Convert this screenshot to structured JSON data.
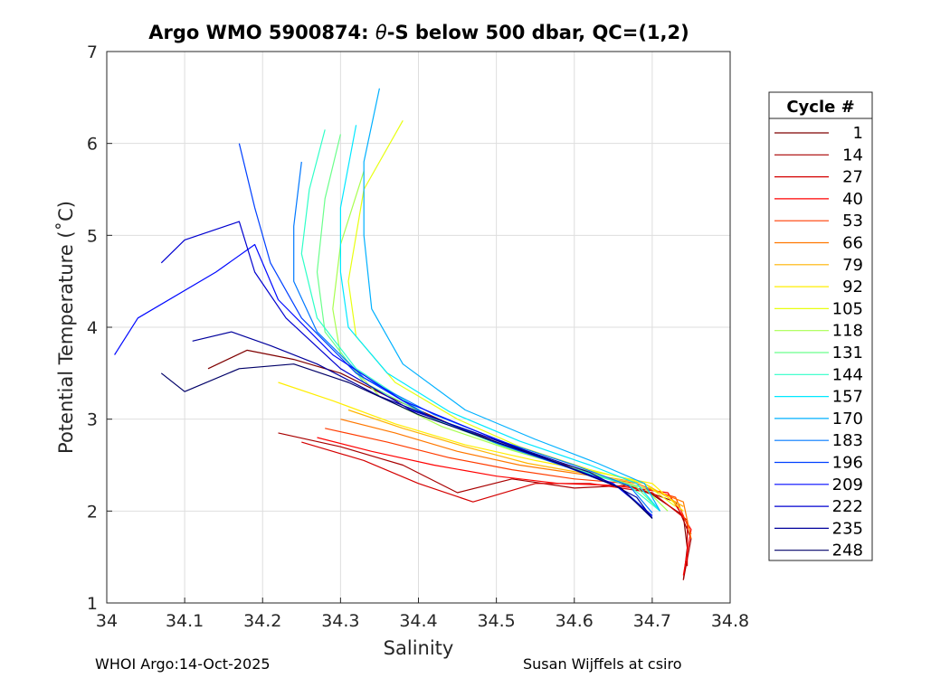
{
  "chart_data": {
    "type": "line",
    "title_prefix": "Argo WMO 5900874: ",
    "title_theta": "θ",
    "title_suffix": "-S below 500 dbar,  QC=(1,2)",
    "xlabel": "Salinity",
    "ylabel": "Potential Temperature (˚C)",
    "xlim": [
      34.0,
      34.8
    ],
    "ylim": [
      1,
      7
    ],
    "xticks": [
      "34",
      "34.1",
      "34.2",
      "34.3",
      "34.4",
      "34.5",
      "34.6",
      "34.7",
      "34.8"
    ],
    "yticks": [
      "1",
      "2",
      "3",
      "4",
      "5",
      "6",
      "7"
    ],
    "grid": true,
    "legend": {
      "title": "Cycle #",
      "placement": "right",
      "entries": [
        "1",
        "14",
        "27",
        "40",
        "53",
        "66",
        "79",
        "92",
        "105",
        "118",
        "131",
        "144",
        "157",
        "170",
        "183",
        "196",
        "209",
        "222",
        "235",
        "248"
      ],
      "colors": [
        "#7f0000",
        "#a80000",
        "#d40000",
        "#ff0000",
        "#ff3c00",
        "#ff7800",
        "#ffb400",
        "#ffee00",
        "#e8ff10",
        "#a8ff50",
        "#6bff8c",
        "#2fffc8",
        "#00e8ff",
        "#00b0ff",
        "#0078ff",
        "#0040ff",
        "#0008ff",
        "#0000d0",
        "#00009c",
        "#000068"
      ]
    },
    "series_shape": {
      "deep_end_point": [
        34.745,
        1.2
      ],
      "description_free": true
    },
    "series": [
      {
        "name": "1",
        "values": [
          [
            34.13,
            3.55
          ],
          [
            34.18,
            3.75
          ],
          [
            34.24,
            3.65
          ],
          [
            34.3,
            3.5
          ],
          [
            34.36,
            3.25
          ],
          [
            34.44,
            2.95
          ],
          [
            34.53,
            2.65
          ],
          [
            34.62,
            2.42
          ],
          [
            34.7,
            2.18
          ],
          [
            34.74,
            1.95
          ],
          [
            34.745,
            1.6
          ],
          [
            34.74,
            1.25
          ]
        ]
      },
      {
        "name": "14",
        "values": [
          [
            34.22,
            2.85
          ],
          [
            34.3,
            2.7
          ],
          [
            34.38,
            2.5
          ],
          [
            34.45,
            2.2
          ],
          [
            34.52,
            2.35
          ],
          [
            34.6,
            2.25
          ],
          [
            34.67,
            2.28
          ],
          [
            34.73,
            2.1
          ],
          [
            34.75,
            1.7
          ],
          [
            34.74,
            1.25
          ]
        ]
      },
      {
        "name": "27",
        "values": [
          [
            34.25,
            2.75
          ],
          [
            34.33,
            2.55
          ],
          [
            34.4,
            2.3
          ],
          [
            34.47,
            2.1
          ],
          [
            34.55,
            2.3
          ],
          [
            34.62,
            2.3
          ],
          [
            34.7,
            2.2
          ],
          [
            34.745,
            1.9
          ],
          [
            34.745,
            1.4
          ]
        ]
      },
      {
        "name": "40",
        "values": [
          [
            34.27,
            2.8
          ],
          [
            34.34,
            2.65
          ],
          [
            34.42,
            2.5
          ],
          [
            34.5,
            2.38
          ],
          [
            34.58,
            2.3
          ],
          [
            34.65,
            2.28
          ],
          [
            34.72,
            2.2
          ],
          [
            34.75,
            1.8
          ],
          [
            34.74,
            1.3
          ]
        ]
      },
      {
        "name": "53",
        "values": [
          [
            34.28,
            2.9
          ],
          [
            34.36,
            2.75
          ],
          [
            34.44,
            2.58
          ],
          [
            34.52,
            2.45
          ],
          [
            34.6,
            2.35
          ],
          [
            34.67,
            2.3
          ],
          [
            34.73,
            2.15
          ],
          [
            34.75,
            1.75
          ]
        ]
      },
      {
        "name": "66",
        "values": [
          [
            34.3,
            3.0
          ],
          [
            34.37,
            2.85
          ],
          [
            34.45,
            2.65
          ],
          [
            34.53,
            2.5
          ],
          [
            34.61,
            2.4
          ],
          [
            34.68,
            2.3
          ],
          [
            34.74,
            2.1
          ],
          [
            34.75,
            1.7
          ]
        ]
      },
      {
        "name": "79",
        "values": [
          [
            34.31,
            3.1
          ],
          [
            34.38,
            2.9
          ],
          [
            34.46,
            2.7
          ],
          [
            34.54,
            2.52
          ],
          [
            34.62,
            2.4
          ],
          [
            34.69,
            2.3
          ],
          [
            34.74,
            2.05
          ]
        ]
      },
      {
        "name": "92",
        "values": [
          [
            34.22,
            3.4
          ],
          [
            34.29,
            3.2
          ],
          [
            34.37,
            2.95
          ],
          [
            34.46,
            2.72
          ],
          [
            34.55,
            2.55
          ],
          [
            34.63,
            2.42
          ],
          [
            34.7,
            2.3
          ],
          [
            34.74,
            2.0
          ]
        ]
      },
      {
        "name": "105",
        "values": [
          [
            34.38,
            6.25
          ],
          [
            34.33,
            5.5
          ],
          [
            34.31,
            4.5
          ],
          [
            34.32,
            3.9
          ],
          [
            34.37,
            3.4
          ],
          [
            34.45,
            3.0
          ],
          [
            34.53,
            2.7
          ],
          [
            34.62,
            2.45
          ],
          [
            34.69,
            2.3
          ],
          [
            34.73,
            2.05
          ]
        ]
      },
      {
        "name": "118",
        "values": [
          [
            34.33,
            5.7
          ],
          [
            34.3,
            4.9
          ],
          [
            34.29,
            4.2
          ],
          [
            34.3,
            3.7
          ],
          [
            34.35,
            3.25
          ],
          [
            34.43,
            2.92
          ],
          [
            34.52,
            2.66
          ],
          [
            34.61,
            2.44
          ],
          [
            34.69,
            2.25
          ],
          [
            34.72,
            2.0
          ]
        ]
      },
      {
        "name": "131",
        "values": [
          [
            34.3,
            6.1
          ],
          [
            34.28,
            5.4
          ],
          [
            34.27,
            4.6
          ],
          [
            34.28,
            3.95
          ],
          [
            34.33,
            3.4
          ],
          [
            34.42,
            3.0
          ],
          [
            34.51,
            2.7
          ],
          [
            34.6,
            2.46
          ],
          [
            34.68,
            2.26
          ],
          [
            34.71,
            2.0
          ]
        ]
      },
      {
        "name": "144",
        "values": [
          [
            34.28,
            6.15
          ],
          [
            34.26,
            5.5
          ],
          [
            34.25,
            4.8
          ],
          [
            34.27,
            4.1
          ],
          [
            34.32,
            3.55
          ],
          [
            34.41,
            3.05
          ],
          [
            34.5,
            2.74
          ],
          [
            34.59,
            2.48
          ],
          [
            34.67,
            2.28
          ],
          [
            34.71,
            2.0
          ]
        ]
      },
      {
        "name": "157",
        "values": [
          [
            34.32,
            6.2
          ],
          [
            34.3,
            5.3
          ],
          [
            34.3,
            4.6
          ],
          [
            34.31,
            4.0
          ],
          [
            34.36,
            3.5
          ],
          [
            34.44,
            3.08
          ],
          [
            34.53,
            2.76
          ],
          [
            34.62,
            2.5
          ],
          [
            34.68,
            2.3
          ],
          [
            34.71,
            2.0
          ]
        ]
      },
      {
        "name": "170",
        "values": [
          [
            34.35,
            6.6
          ],
          [
            34.33,
            5.8
          ],
          [
            34.33,
            5.0
          ],
          [
            34.34,
            4.2
          ],
          [
            34.38,
            3.6
          ],
          [
            34.46,
            3.1
          ],
          [
            34.55,
            2.78
          ],
          [
            34.63,
            2.52
          ],
          [
            34.69,
            2.3
          ],
          [
            34.71,
            2.0
          ]
        ]
      },
      {
        "name": "183",
        "values": [
          [
            34.25,
            5.8
          ],
          [
            34.24,
            5.1
          ],
          [
            34.24,
            4.5
          ],
          [
            34.27,
            3.95
          ],
          [
            34.33,
            3.45
          ],
          [
            34.42,
            3.05
          ],
          [
            34.51,
            2.75
          ],
          [
            34.6,
            2.5
          ],
          [
            34.67,
            2.28
          ],
          [
            34.7,
            1.98
          ]
        ]
      },
      {
        "name": "196",
        "values": [
          [
            34.17,
            6.0
          ],
          [
            34.19,
            5.3
          ],
          [
            34.21,
            4.7
          ],
          [
            34.25,
            4.1
          ],
          [
            34.32,
            3.5
          ],
          [
            34.41,
            3.05
          ],
          [
            34.5,
            2.74
          ],
          [
            34.59,
            2.48
          ],
          [
            34.66,
            2.25
          ],
          [
            34.7,
            1.95
          ]
        ]
      },
      {
        "name": "209",
        "values": [
          [
            34.01,
            3.7
          ],
          [
            34.04,
            4.1
          ],
          [
            34.14,
            4.6
          ],
          [
            34.19,
            4.9
          ],
          [
            34.22,
            4.3
          ],
          [
            34.29,
            3.7
          ],
          [
            34.38,
            3.2
          ],
          [
            34.48,
            2.85
          ],
          [
            34.57,
            2.55
          ],
          [
            34.65,
            2.3
          ],
          [
            34.7,
            1.95
          ]
        ]
      },
      {
        "name": "222",
        "values": [
          [
            34.07,
            4.7
          ],
          [
            34.1,
            4.95
          ],
          [
            34.17,
            5.15
          ],
          [
            34.19,
            4.6
          ],
          [
            34.23,
            4.1
          ],
          [
            34.3,
            3.55
          ],
          [
            34.39,
            3.1
          ],
          [
            34.49,
            2.8
          ],
          [
            34.58,
            2.52
          ],
          [
            34.66,
            2.25
          ],
          [
            34.7,
            1.93
          ]
        ]
      },
      {
        "name": "235",
        "values": [
          [
            34.11,
            3.85
          ],
          [
            34.16,
            3.95
          ],
          [
            34.21,
            3.8
          ],
          [
            34.27,
            3.6
          ],
          [
            34.35,
            3.25
          ],
          [
            34.44,
            2.95
          ],
          [
            34.53,
            2.68
          ],
          [
            34.62,
            2.42
          ],
          [
            34.68,
            2.15
          ],
          [
            34.7,
            1.92
          ]
        ]
      },
      {
        "name": "248",
        "values": [
          [
            34.07,
            3.5
          ],
          [
            34.1,
            3.3
          ],
          [
            34.17,
            3.55
          ],
          [
            34.24,
            3.6
          ],
          [
            34.31,
            3.4
          ],
          [
            34.4,
            3.05
          ],
          [
            34.49,
            2.78
          ],
          [
            34.58,
            2.52
          ],
          [
            34.66,
            2.25
          ],
          [
            34.7,
            1.92
          ]
        ]
      }
    ]
  },
  "footer": {
    "left": "WHOI Argo:14-Oct-2025",
    "right": "Susan Wijffels at csiro"
  }
}
